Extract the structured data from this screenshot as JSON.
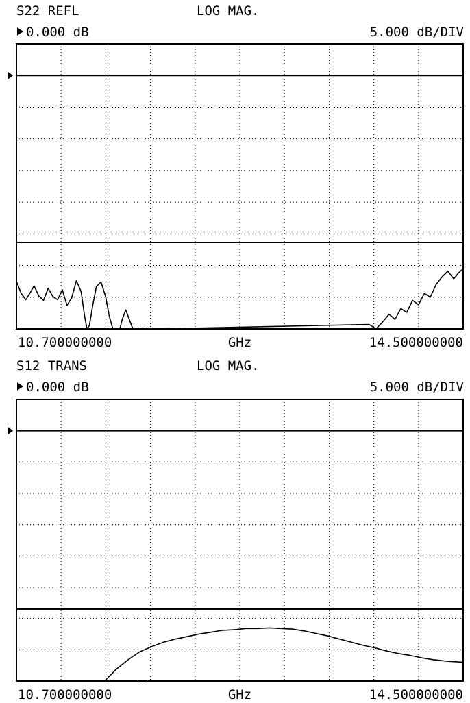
{
  "colors": {
    "background": "#ffffff",
    "trace": "#000000"
  },
  "chart_data": [
    {
      "type": "line",
      "title": "S22 REFL",
      "format": "LOG MAG.",
      "reference_label": "0.000 dB",
      "scale_label": "5.000 dB/DIV",
      "start_label": "10.700000000",
      "unit_label": "GHz",
      "stop_label": "14.500000000",
      "xlim": [
        10.7,
        14.5
      ],
      "ylim": [
        -40,
        5
      ],
      "x_divisions": 10,
      "y_divisions": 9,
      "reference_value": 0,
      "grid": true,
      "series": [
        {
          "x": [
            10.7,
            10.74,
            10.78,
            10.82,
            10.85,
            10.89,
            10.93,
            10.97,
            11.01,
            11.05,
            11.09,
            11.13,
            11.17,
            11.21,
            11.25,
            11.28,
            11.3,
            11.32,
            11.35,
            11.38,
            11.42,
            11.46,
            11.49,
            11.52,
            11.55,
            11.58,
            11.6,
            11.63,
            11.66,
            11.69,
            11.73,
            11.77,
            11.81,
            11.85,
            11.9,
            13.7,
            13.76,
            13.82,
            13.87,
            13.92,
            13.97,
            14.02,
            14.07,
            14.12,
            14.17,
            14.22,
            14.27,
            14.32,
            14.37,
            14.42,
            14.46,
            14.5
          ],
          "y": [
            -32.5,
            -34.4,
            -35.4,
            -34.2,
            -33.2,
            -34.8,
            -35.5,
            -33.6,
            -34.9,
            -35.4,
            -33.8,
            -36.3,
            -35.1,
            -32.4,
            -34.1,
            -38.0,
            -40.0,
            -39.5,
            -36.2,
            -33.3,
            -32.6,
            -35.0,
            -38.0,
            -40.0,
            -40.0,
            -40.0,
            -38.5,
            -37.0,
            -38.5,
            -40.0,
            -40.0,
            -40.0,
            -40.0,
            -40.0,
            -40.0,
            -39.3,
            -40.0,
            -38.8,
            -37.7,
            -38.5,
            -36.8,
            -37.4,
            -35.5,
            -36.2,
            -34.4,
            -35.0,
            -33.0,
            -31.8,
            -30.9,
            -32.1,
            -31.2,
            -30.5
          ]
        }
      ]
    },
    {
      "type": "line",
      "title": "S12 TRANS",
      "format": "LOG MAG.",
      "reference_label": "0.000 dB",
      "scale_label": "5.000 dB/DIV",
      "start_label": "10.700000000",
      "unit_label": "GHz",
      "stop_label": "14.500000000",
      "xlim": [
        10.7,
        14.5
      ],
      "ylim": [
        -40,
        5
      ],
      "x_divisions": 10,
      "y_divisions": 9,
      "reference_value": 0,
      "grid": true,
      "series": [
        {
          "x": [
            11.45,
            11.55,
            11.65,
            11.75,
            11.85,
            11.95,
            12.05,
            12.15,
            12.25,
            12.35,
            12.45,
            12.55,
            12.65,
            12.75,
            12.85,
            12.95,
            13.05,
            13.15,
            13.25,
            13.35,
            13.45,
            13.55,
            13.65,
            13.75,
            13.85,
            13.95,
            14.05,
            14.15,
            14.25,
            14.35,
            14.42,
            14.5
          ],
          "y": [
            -40.0,
            -38.1,
            -36.6,
            -35.3,
            -34.5,
            -33.8,
            -33.3,
            -32.9,
            -32.5,
            -32.2,
            -31.9,
            -31.8,
            -31.6,
            -31.6,
            -31.5,
            -31.6,
            -31.7,
            -32.0,
            -32.4,
            -32.8,
            -33.3,
            -33.8,
            -34.3,
            -34.7,
            -35.2,
            -35.6,
            -35.9,
            -36.3,
            -36.6,
            -36.8,
            -36.9,
            -37.0
          ]
        }
      ]
    }
  ]
}
